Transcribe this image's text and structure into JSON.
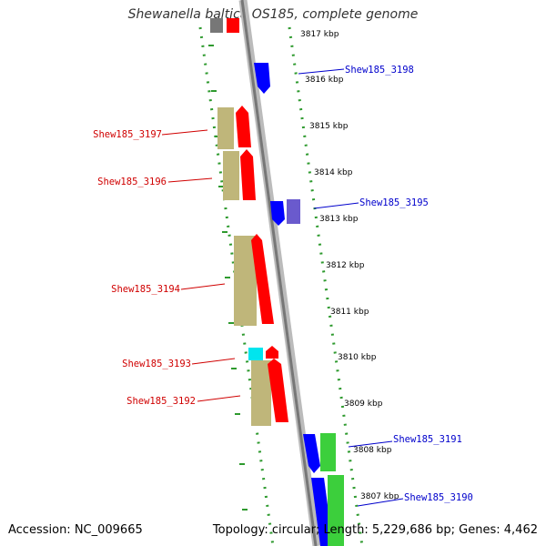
{
  "title": "Shewanella baltica OS185, complete genome",
  "footer": {
    "accession": "Accession: NC_009665",
    "topology": "Topology: circular; Length: 5,229,686 bp; Genes: 4,462"
  },
  "colors": {
    "backbone": "#8c8c8c",
    "ring_dots": "#2e9a2e",
    "forward_cds": "#ff0000",
    "forward_gene": "#bfb67a",
    "reverse_cds": "#0000ff",
    "reverse_cds_light": "#6a5acd",
    "rna": "#00e5ee",
    "green_gene": "#3ccf3c",
    "forward_label": "#d00000",
    "reverse_label": "#0000cc"
  },
  "ticks": [
    "3817 kbp",
    "3816 kbp",
    "3815 kbp",
    "3814 kbp",
    "3813 kbp",
    "3812 kbp",
    "3811 kbp",
    "3810 kbp",
    "3809 kbp",
    "3808 kbp",
    "3807 kbp"
  ],
  "genes_forward": [
    "Shew185_3197",
    "Shew185_3196",
    "Shew185_3194",
    "Shew185_3193",
    "Shew185_3192"
  ],
  "genes_reverse": [
    "Shew185_3198",
    "Shew185_3195",
    "Shew185_3191",
    "Shew185_3190"
  ]
}
